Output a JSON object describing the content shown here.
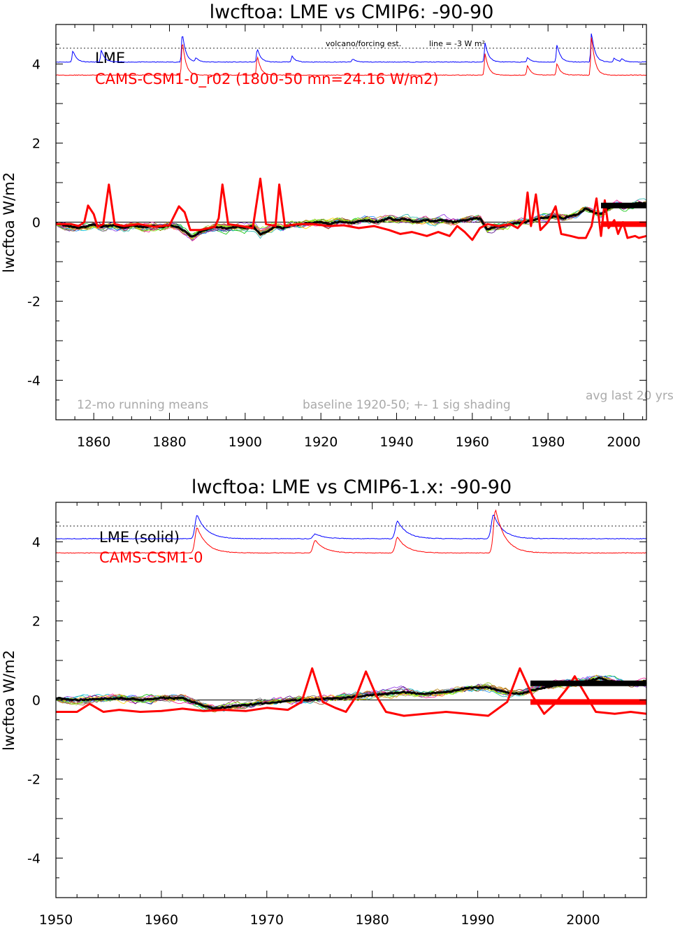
{
  "chart_data": [
    {
      "type": "line",
      "title": "lwcftoa: LME vs CMIP6: -90-90",
      "ylabel": "lwcftoa W/m2",
      "xlabel": "",
      "xlim": [
        1850,
        2006
      ],
      "ylim": [
        -5,
        5
      ],
      "x_ticks": [
        1860,
        1880,
        1900,
        1920,
        1940,
        1960,
        1980,
        2000
      ],
      "y_ticks": [
        -4,
        -2,
        0,
        2,
        4
      ],
      "legend": {
        "position": "top-left",
        "entries": [
          {
            "label": "LME",
            "color": "#000000"
          },
          {
            "label": "CAMS-CSM1-0_r02 (1800-50 mn=24.16 W/m2)",
            "color": "#ff0000"
          }
        ]
      },
      "annotations": {
        "left": "12-mo running means",
        "center": "baseline 1920-50; +- 1 sig shading",
        "right": "avg last 20 yrs",
        "volcano": "volcano/forcing est.",
        "line": "line = -3 W m²"
      },
      "dotted_line_y": 4.4,
      "forcing_blue": {
        "name": "volcano/forcing est.",
        "color": "#0000ff",
        "base": 4.05,
        "events": [
          [
            1854.5,
            0.3
          ],
          [
            1862,
            0.3
          ],
          [
            1883.4,
            0.75
          ],
          [
            1887,
            0.1
          ],
          [
            1903.2,
            0.35
          ],
          [
            1912.4,
            0.15
          ],
          [
            1928.4,
            0.08
          ],
          [
            1963.4,
            0.5
          ],
          [
            1974.6,
            0.12
          ],
          [
            1982.4,
            0.45
          ],
          [
            1991.5,
            0.75
          ],
          [
            1997.5,
            0.1
          ],
          [
            1999.5,
            0.08
          ]
        ]
      },
      "forcing_red": {
        "color": "#ff0000",
        "base": 3.72,
        "events": [
          [
            1883.4,
            0.9
          ],
          [
            1903.2,
            0.5
          ],
          [
            1963.4,
            0.55
          ],
          [
            1974.6,
            0.25
          ],
          [
            1982.4,
            0.3
          ],
          [
            1991.5,
            1.0
          ]
        ]
      },
      "lme_mean": {
        "color": "#000000",
        "points": [
          [
            1850,
            -0.02
          ],
          [
            1853,
            -0.1
          ],
          [
            1856,
            -0.15
          ],
          [
            1858,
            -0.12
          ],
          [
            1860,
            -0.05
          ],
          [
            1862,
            -0.12
          ],
          [
            1865,
            -0.08
          ],
          [
            1868,
            -0.15
          ],
          [
            1870,
            -0.08
          ],
          [
            1873,
            -0.12
          ],
          [
            1876,
            -0.1
          ],
          [
            1878,
            -0.12
          ],
          [
            1880,
            -0.08
          ],
          [
            1882,
            -0.12
          ],
          [
            1884,
            -0.22
          ],
          [
            1886,
            -0.38
          ],
          [
            1888,
            -0.25
          ],
          [
            1890,
            -0.18
          ],
          [
            1892,
            -0.12
          ],
          [
            1895,
            -0.15
          ],
          [
            1898,
            -0.12
          ],
          [
            1900,
            -0.15
          ],
          [
            1902,
            -0.1
          ],
          [
            1904,
            -0.3
          ],
          [
            1906,
            -0.22
          ],
          [
            1908,
            -0.12
          ],
          [
            1910,
            -0.15
          ],
          [
            1912,
            -0.08
          ],
          [
            1915,
            -0.05
          ],
          [
            1918,
            -0.02
          ],
          [
            1920,
            0.0
          ],
          [
            1922,
            -0.05
          ],
          [
            1925,
            0.02
          ],
          [
            1928,
            -0.02
          ],
          [
            1930,
            0.02
          ],
          [
            1932,
            0.05
          ],
          [
            1935,
            0.0
          ],
          [
            1938,
            0.1
          ],
          [
            1940,
            0.05
          ],
          [
            1942,
            0.08
          ],
          [
            1945,
            0.0
          ],
          [
            1948,
            0.05
          ],
          [
            1950,
            0.02
          ],
          [
            1952,
            0.05
          ],
          [
            1955,
            0.0
          ],
          [
            1958,
            0.05
          ],
          [
            1960,
            0.08
          ],
          [
            1962,
            0.1
          ],
          [
            1964,
            -0.2
          ],
          [
            1966,
            -0.12
          ],
          [
            1968,
            -0.1
          ],
          [
            1970,
            -0.05
          ],
          [
            1972,
            -0.02
          ],
          [
            1974,
            0.0
          ],
          [
            1976,
            0.05
          ],
          [
            1978,
            0.1
          ],
          [
            1980,
            0.12
          ],
          [
            1982,
            0.15
          ],
          [
            1984,
            0.1
          ],
          [
            1986,
            0.15
          ],
          [
            1988,
            0.2
          ],
          [
            1990,
            0.35
          ],
          [
            1992,
            0.25
          ],
          [
            1994,
            0.2
          ],
          [
            1996,
            0.35
          ],
          [
            1998,
            0.45
          ],
          [
            2000,
            0.4
          ],
          [
            2002,
            0.45
          ],
          [
            2004,
            0.48
          ],
          [
            2006,
            0.45
          ]
        ]
      },
      "cams": {
        "color": "#ff0000",
        "points": [
          [
            1850,
            -0.05
          ],
          [
            1854,
            -0.05
          ],
          [
            1856,
            -0.1
          ],
          [
            1857.5,
            0.0
          ],
          [
            1858.5,
            0.42
          ],
          [
            1860,
            0.2
          ],
          [
            1861,
            -0.12
          ],
          [
            1862.5,
            -0.05
          ],
          [
            1864,
            0.95
          ],
          [
            1865.5,
            -0.05
          ],
          [
            1868,
            -0.1
          ],
          [
            1872,
            -0.05
          ],
          [
            1876,
            -0.12
          ],
          [
            1880,
            -0.08
          ],
          [
            1882.5,
            0.4
          ],
          [
            1884,
            0.25
          ],
          [
            1885.5,
            -0.2
          ],
          [
            1888,
            -0.2
          ],
          [
            1892,
            -0.12
          ],
          [
            1893,
            0.1
          ],
          [
            1894,
            0.95
          ],
          [
            1895.5,
            -0.05
          ],
          [
            1899,
            -0.1
          ],
          [
            1902,
            -0.15
          ],
          [
            1904,
            1.1
          ],
          [
            1905.5,
            -0.05
          ],
          [
            1908,
            -0.1
          ],
          [
            1909,
            0.95
          ],
          [
            1910.5,
            -0.1
          ],
          [
            1914,
            -0.05
          ],
          [
            1918,
            -0.05
          ],
          [
            1922,
            -0.1
          ],
          [
            1926,
            -0.08
          ],
          [
            1930,
            -0.15
          ],
          [
            1934,
            -0.1
          ],
          [
            1938,
            -0.2
          ],
          [
            1941,
            -0.3
          ],
          [
            1944,
            -0.25
          ],
          [
            1948,
            -0.35
          ],
          [
            1951,
            -0.25
          ],
          [
            1954,
            -0.35
          ],
          [
            1956,
            -0.1
          ],
          [
            1958,
            -0.25
          ],
          [
            1960,
            -0.45
          ],
          [
            1962,
            -0.15
          ],
          [
            1964,
            -0.05
          ],
          [
            1967,
            -0.1
          ],
          [
            1970,
            -0.05
          ],
          [
            1972,
            -0.15
          ],
          [
            1973.8,
            0.05
          ],
          [
            1974.6,
            0.75
          ],
          [
            1975.5,
            -0.1
          ],
          [
            1976.8,
            0.7
          ],
          [
            1978,
            -0.2
          ],
          [
            1980,
            0.0
          ],
          [
            1982,
            0.4
          ],
          [
            1983.5,
            -0.3
          ],
          [
            1986,
            -0.35
          ],
          [
            1988,
            -0.4
          ],
          [
            1990,
            -0.4
          ],
          [
            1991.5,
            -0.1
          ],
          [
            1992.8,
            0.6
          ],
          [
            1994,
            -0.35
          ],
          [
            1995,
            0.55
          ],
          [
            1996,
            -0.15
          ],
          [
            1997.5,
            0.05
          ],
          [
            1998.5,
            -0.3
          ],
          [
            1999.8,
            0.0
          ],
          [
            2001,
            -0.4
          ],
          [
            2003,
            -0.35
          ],
          [
            2004,
            -0.4
          ],
          [
            2006,
            -0.35
          ]
        ]
      },
      "avg_last20": [
        {
          "label": "LME",
          "value": 0.42,
          "x_start": 1994,
          "x_end": 2006,
          "color": "#000000"
        },
        {
          "label": "CAMS-CSM1-0",
          "value": -0.05,
          "x_start": 1994,
          "x_end": 2006,
          "color": "#ff0000"
        }
      ]
    },
    {
      "type": "line",
      "title": "lwcftoa: LME vs CMIP6-1.x: -90-90",
      "ylabel": "lwcftoa W/m2",
      "xlabel": "",
      "xlim": [
        1950,
        2006
      ],
      "ylim": [
        -5,
        5
      ],
      "x_ticks": [
        1950,
        1960,
        1970,
        1980,
        1990,
        2000
      ],
      "y_ticks": [
        -4,
        -2,
        0,
        2,
        4
      ],
      "legend": {
        "position": "top-left",
        "entries": [
          {
            "label": "LME (solid)",
            "color": "#000000"
          },
          {
            "label": "CAMS-CSM1-0",
            "color": "#ff0000"
          }
        ]
      },
      "dotted_line_y": 4.4,
      "forcing_blue": {
        "name": "volcano/forcing est.",
        "color": "#0000ff",
        "base": 4.08,
        "events": [
          [
            1963.4,
            0.6
          ],
          [
            1974.6,
            0.12
          ],
          [
            1982.4,
            0.45
          ],
          [
            1991.5,
            0.62
          ]
        ]
      },
      "forcing_red": {
        "color": "#ff0000",
        "base": 3.72,
        "events": [
          [
            1963.4,
            0.65
          ],
          [
            1974.6,
            0.32
          ],
          [
            1982.4,
            0.4
          ],
          [
            1991.7,
            1.1
          ]
        ]
      },
      "lme_mean": {
        "color": "#000000",
        "points": [
          [
            1950,
            0.05
          ],
          [
            1952,
            0.0
          ],
          [
            1954,
            0.02
          ],
          [
            1956,
            0.05
          ],
          [
            1958,
            0.0
          ],
          [
            1960,
            0.05
          ],
          [
            1962,
            0.05
          ],
          [
            1963.5,
            -0.1
          ],
          [
            1965,
            -0.22
          ],
          [
            1967,
            -0.15
          ],
          [
            1969,
            -0.1
          ],
          [
            1971,
            -0.05
          ],
          [
            1973,
            0.0
          ],
          [
            1975,
            0.02
          ],
          [
            1977,
            0.05
          ],
          [
            1979,
            0.1
          ],
          [
            1981,
            0.15
          ],
          [
            1983,
            0.2
          ],
          [
            1985,
            0.15
          ],
          [
            1987,
            0.2
          ],
          [
            1989,
            0.3
          ],
          [
            1991,
            0.32
          ],
          [
            1992.5,
            0.2
          ],
          [
            1994,
            0.15
          ],
          [
            1996,
            0.3
          ],
          [
            1998,
            0.4
          ],
          [
            2000,
            0.45
          ],
          [
            2001.5,
            0.55
          ],
          [
            2003,
            0.45
          ],
          [
            2006,
            0.42
          ]
        ]
      },
      "cams": {
        "color": "#ff0000",
        "points": [
          [
            1950,
            -0.3
          ],
          [
            1952,
            -0.3
          ],
          [
            1953.2,
            -0.1
          ],
          [
            1954.5,
            -0.3
          ],
          [
            1956,
            -0.25
          ],
          [
            1958,
            -0.3
          ],
          [
            1960,
            -0.28
          ],
          [
            1962,
            -0.22
          ],
          [
            1964,
            -0.28
          ],
          [
            1966,
            -0.25
          ],
          [
            1968,
            -0.28
          ],
          [
            1970,
            -0.2
          ],
          [
            1972,
            -0.25
          ],
          [
            1973.3,
            -0.05
          ],
          [
            1974.3,
            0.8
          ],
          [
            1975.3,
            -0.05
          ],
          [
            1976.5,
            -0.2
          ],
          [
            1977.5,
            -0.3
          ],
          [
            1978.5,
            0.1
          ],
          [
            1979.4,
            0.72
          ],
          [
            1980.4,
            0.1
          ],
          [
            1981.3,
            -0.3
          ],
          [
            1983,
            -0.4
          ],
          [
            1985,
            -0.35
          ],
          [
            1987,
            -0.3
          ],
          [
            1989,
            -0.35
          ],
          [
            1991,
            -0.4
          ],
          [
            1992.8,
            -0.05
          ],
          [
            1994,
            0.8
          ],
          [
            1995.2,
            0.1
          ],
          [
            1996.3,
            -0.35
          ],
          [
            1997.3,
            -0.1
          ],
          [
            1998.5,
            0.3
          ],
          [
            1999.2,
            0.6
          ],
          [
            2000.2,
            0.15
          ],
          [
            2001.2,
            -0.3
          ],
          [
            2003,
            -0.35
          ],
          [
            2004.5,
            -0.3
          ],
          [
            2006,
            -0.35
          ]
        ]
      },
      "avg_last20": [
        {
          "label": "LME",
          "value": 0.42,
          "x_start": 1995,
          "x_end": 2006,
          "color": "#000000"
        },
        {
          "label": "CAMS-CSM1-0",
          "value": -0.05,
          "x_start": 1995,
          "x_end": 2006,
          "color": "#ff0000"
        }
      ]
    }
  ]
}
